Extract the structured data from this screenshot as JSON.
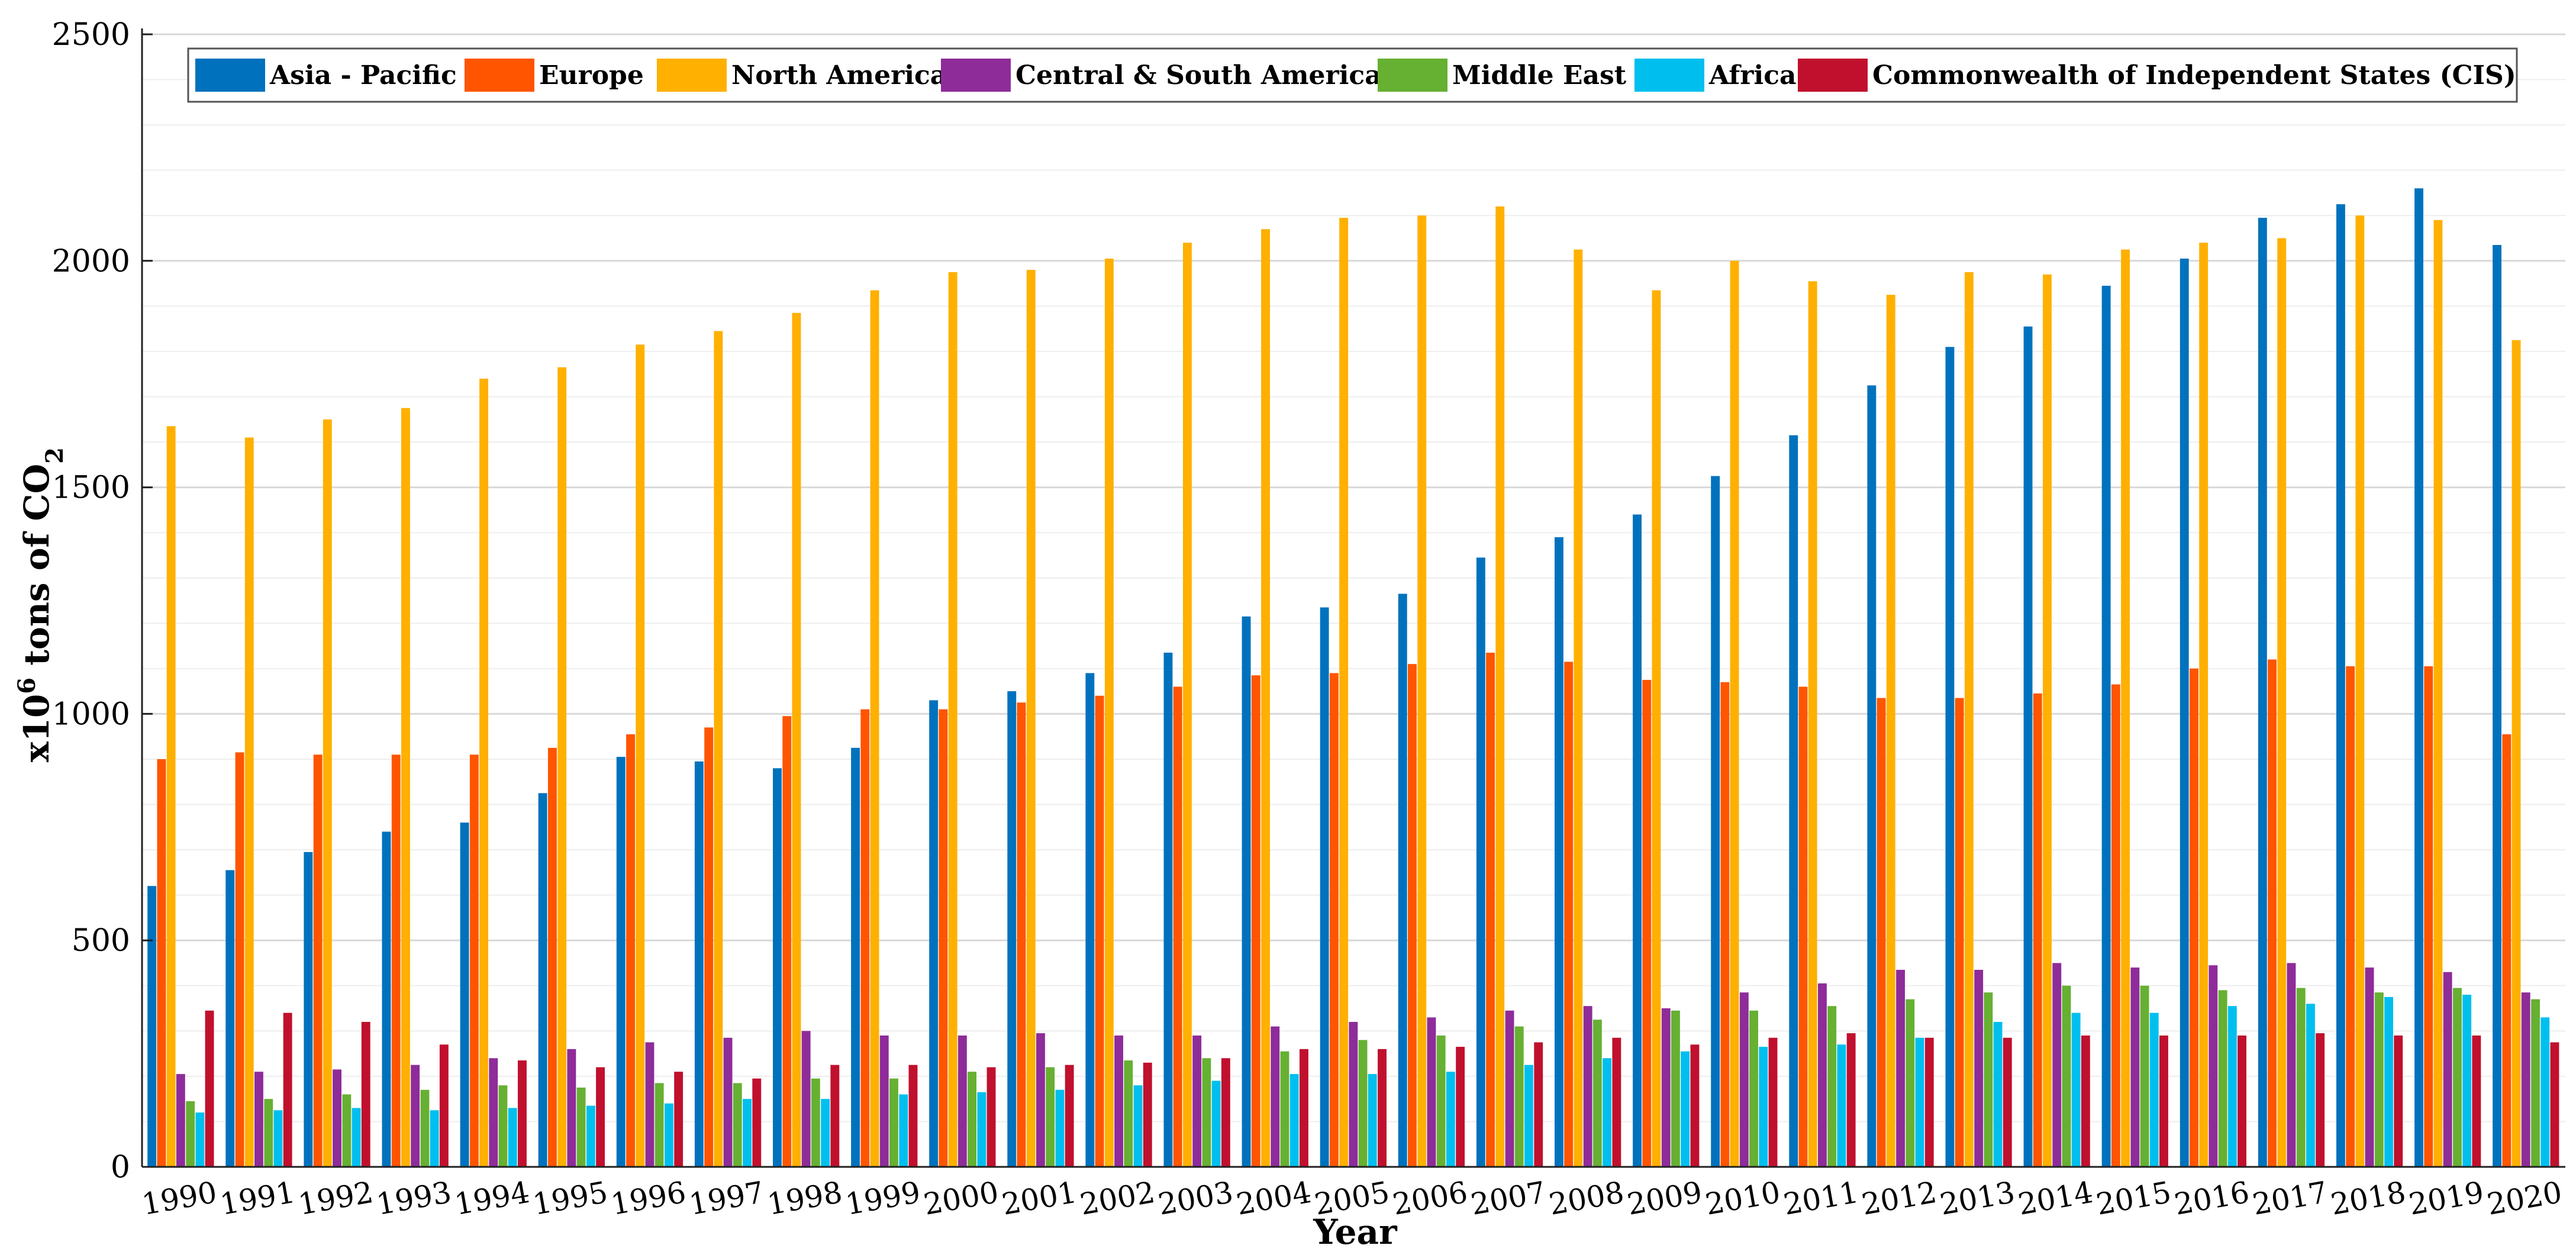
{
  "chart_data": {
    "type": "bar",
    "xlabel": "Year",
    "ylabel": "x10",
    "ylabel_sup": "6",
    "ylabel_mid": " tons of CO",
    "ylabel_sub": "2",
    "ylim": [
      0,
      2500
    ],
    "yticks": [
      0,
      500,
      1000,
      1500,
      2000,
      2500
    ],
    "ytick_labels": [
      "0",
      "500",
      "1000",
      "1500",
      "2000",
      "2500"
    ],
    "grid": "horizontal",
    "legend_position": "top",
    "categories": [
      "1990",
      "1991",
      "1992",
      "1993",
      "1994",
      "1995",
      "1996",
      "1997",
      "1998",
      "1999",
      "2000",
      "2001",
      "2002",
      "2003",
      "2004",
      "2005",
      "2006",
      "2007",
      "2008",
      "2009",
      "2010",
      "2011",
      "2012",
      "2013",
      "2014",
      "2015",
      "2016",
      "2017",
      "2018",
      "2019",
      "2020"
    ],
    "series": [
      {
        "name": "Asia - Pacific",
        "color": "#0072BD",
        "values": [
          620,
          655,
          695,
          740,
          760,
          825,
          905,
          895,
          880,
          925,
          1030,
          1050,
          1090,
          1135,
          1215,
          1235,
          1265,
          1345,
          1390,
          1440,
          1525,
          1615,
          1725,
          1810,
          1855,
          1945,
          2005,
          2095,
          2125,
          2160,
          2035
        ]
      },
      {
        "name": "Europe",
        "color": "#FF5500",
        "values": [
          900,
          915,
          910,
          910,
          910,
          925,
          955,
          970,
          995,
          1010,
          1010,
          1025,
          1040,
          1060,
          1085,
          1090,
          1110,
          1135,
          1115,
          1075,
          1070,
          1060,
          1035,
          1035,
          1045,
          1065,
          1100,
          1120,
          1105,
          1105,
          955
        ]
      },
      {
        "name": "North America",
        "color": "#FFB000",
        "values": [
          1635,
          1610,
          1650,
          1675,
          1740,
          1765,
          1815,
          1845,
          1885,
          1935,
          1975,
          1980,
          2005,
          2040,
          2070,
          2095,
          2100,
          2120,
          2025,
          1935,
          2000,
          1955,
          1925,
          1975,
          1970,
          2025,
          2040,
          2050,
          2100,
          2090,
          1825
        ]
      },
      {
        "name": "Central & South America",
        "color": "#8E2C9A",
        "values": [
          205,
          210,
          215,
          225,
          240,
          260,
          275,
          285,
          300,
          290,
          290,
          295,
          290,
          290,
          310,
          320,
          330,
          345,
          355,
          350,
          385,
          405,
          435,
          435,
          450,
          440,
          445,
          450,
          440,
          430,
          385
        ]
      },
      {
        "name": "Middle East",
        "color": "#66B032",
        "values": [
          145,
          150,
          160,
          170,
          180,
          175,
          185,
          185,
          195,
          195,
          210,
          220,
          235,
          240,
          255,
          280,
          290,
          310,
          325,
          345,
          345,
          355,
          370,
          385,
          400,
          400,
          390,
          395,
          385,
          395,
          370
        ]
      },
      {
        "name": "Africa",
        "color": "#00BFEF",
        "values": [
          120,
          125,
          130,
          125,
          130,
          135,
          140,
          150,
          150,
          160,
          165,
          170,
          180,
          190,
          205,
          205,
          210,
          225,
          240,
          255,
          265,
          270,
          285,
          320,
          340,
          340,
          355,
          360,
          375,
          380,
          330
        ]
      },
      {
        "name": "Commonwealth of Independent States (CIS)",
        "color": "#C0102D",
        "values": [
          345,
          340,
          320,
          270,
          235,
          220,
          210,
          195,
          225,
          225,
          220,
          225,
          230,
          240,
          260,
          260,
          265,
          275,
          285,
          270,
          285,
          295,
          285,
          285,
          290,
          290,
          290,
          295,
          290,
          290,
          275
        ]
      }
    ]
  }
}
